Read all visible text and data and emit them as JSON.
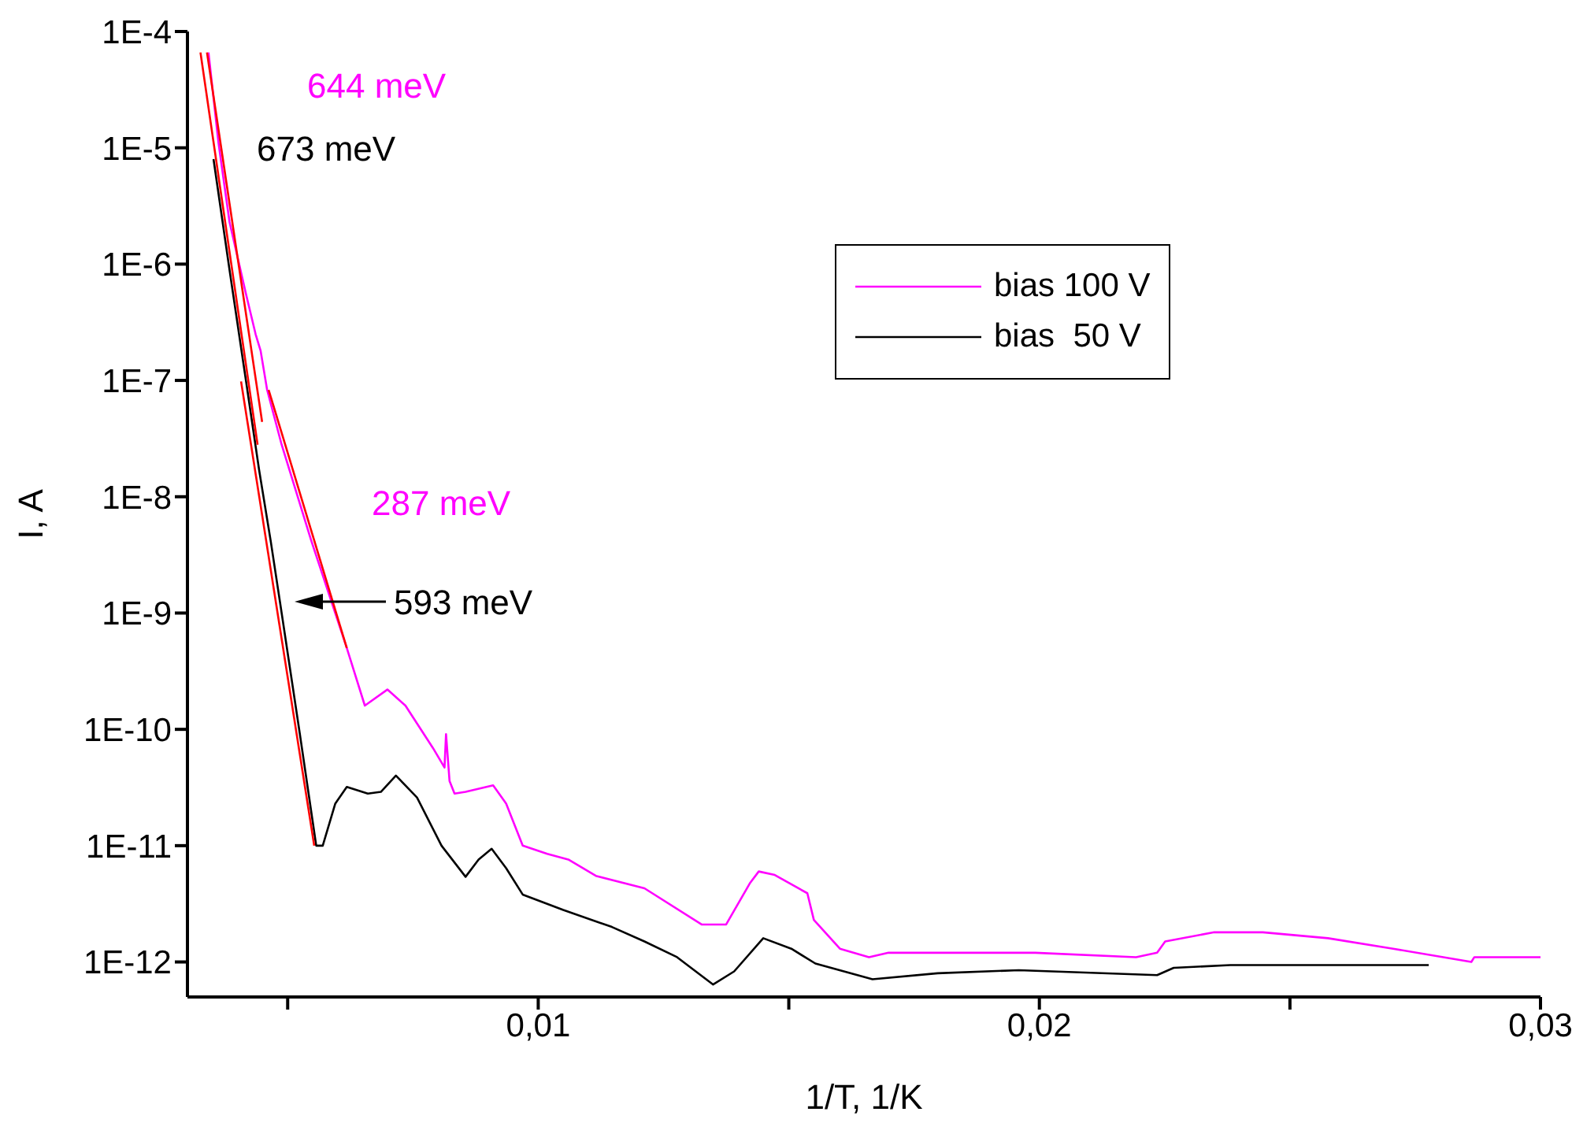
{
  "chart_data": {
    "type": "line",
    "xlabel": "1/T, 1/K",
    "ylabel": "I, A",
    "log": "y",
    "xlim": [
      0.003,
      0.03
    ],
    "ylim": [
      5e-13,
      0.0001
    ],
    "xticks": [
      {
        "value": 0.005,
        "label": null
      },
      {
        "value": 0.01,
        "label": "0,01"
      },
      {
        "value": 0.015,
        "label": null
      },
      {
        "value": 0.02,
        "label": "0,02"
      },
      {
        "value": 0.025,
        "label": null
      },
      {
        "value": 0.03,
        "label": "0,03"
      }
    ],
    "yticks": [
      {
        "value": 1e-12,
        "label": "1E-12"
      },
      {
        "value": 1e-11,
        "label": "1E-11"
      },
      {
        "value": 1e-10,
        "label": "1E-10"
      },
      {
        "value": 1e-09,
        "label": "1E-9"
      },
      {
        "value": 1e-08,
        "label": "1E-8"
      },
      {
        "value": 1e-07,
        "label": "1E-7"
      },
      {
        "value": 1e-06,
        "label": "1E-6"
      },
      {
        "value": 1e-05,
        "label": "1E-5"
      },
      {
        "value": 0.0001,
        "label": "1E-4"
      }
    ],
    "legend": "top right",
    "marker": "none",
    "line_style": "solid",
    "series": [
      {
        "name": "bias 100 V",
        "color": "#ff00ff",
        "x": [
          0.00342,
          0.00362,
          0.00384,
          0.00417,
          0.00436,
          0.00446,
          0.00459,
          0.00488,
          0.00547,
          0.00618,
          0.00654,
          0.00699,
          0.00735,
          0.0079,
          0.00813,
          0.00816,
          0.00823,
          0.00833,
          0.00855,
          0.0091,
          0.00936,
          0.00969,
          0.01018,
          0.0106,
          0.01115,
          0.01212,
          0.01326,
          0.01375,
          0.01423,
          0.0144,
          0.01472,
          0.01537,
          0.0155,
          0.01602,
          0.0166,
          0.01699,
          0.01797,
          0.01992,
          0.02193,
          0.02235,
          0.02251,
          0.02349,
          0.02446,
          0.02576,
          0.02706,
          0.02862,
          0.02868,
          0.03
        ],
        "values": [
          6.6e-05,
          1.1e-05,
          2.3e-06,
          5.5e-07,
          2.5e-07,
          1.8e-07,
          8.3e-08,
          2.8e-08,
          4.2e-09,
          5e-10,
          1.6e-10,
          2.2e-10,
          1.6e-10,
          6.9e-11,
          4.7e-11,
          9.1e-11,
          3.6e-11,
          2.8e-11,
          2.9e-11,
          3.3e-11,
          2.3e-11,
          1e-11,
          8.5e-12,
          7.6e-12,
          5.5e-12,
          4.3e-12,
          2.1e-12,
          2.1e-12,
          4.8e-12,
          6e-12,
          5.6e-12,
          3.9e-12,
          2.3e-12,
          1.3e-12,
          1.1e-12,
          1.2e-12,
          1.2e-12,
          1.2e-12,
          1.1e-12,
          1.2e-12,
          1.5e-12,
          1.8e-12,
          1.8e-12,
          1.6e-12,
          1.3e-12,
          1e-12,
          1.1e-12,
          1.1e-12
        ]
      },
      {
        "name": "bias  50 V",
        "color": "#000000",
        "x": [
          0.00352,
          0.00384,
          0.00417,
          0.00443,
          0.00466,
          0.00488,
          0.00524,
          0.00557,
          0.0057,
          0.00595,
          0.00618,
          0.0066,
          0.00686,
          0.00716,
          0.00758,
          0.00807,
          0.00855,
          0.00881,
          0.00907,
          0.00936,
          0.00969,
          0.0105,
          0.01147,
          0.01212,
          0.01277,
          0.01349,
          0.01391,
          0.01449,
          0.01505,
          0.01553,
          0.01667,
          0.01797,
          0.01959,
          0.02235,
          0.02268,
          0.02381,
          0.02771,
          0.02777
        ],
        "values": [
          8e-06,
          8.9e-07,
          9.8e-08,
          1.7e-08,
          4.2e-09,
          1e-09,
          9.3e-11,
          1e-11,
          1e-11,
          2.3e-11,
          3.2e-11,
          2.8e-11,
          2.9e-11,
          4e-11,
          2.6e-11,
          1e-11,
          5.4e-12,
          7.6e-12,
          9.4e-12,
          6.4e-12,
          3.8e-12,
          2.8e-12,
          2e-12,
          1.5e-12,
          1.1e-12,
          6.4e-13,
          8.3e-13,
          1.6e-12,
          1.3e-12,
          9.7e-13,
          7.1e-13,
          8e-13,
          8.5e-13,
          7.7e-13,
          8.9e-13,
          9.4e-13,
          9.4e-13,
          9.4e-13
        ]
      },
      {
        "color": "#ff0000",
        "x": [
          0.00326,
          0.0044
        ],
        "values": [
          6.6e-05,
          2.8e-08
        ]
      },
      {
        "color": "#ff0000",
        "x": [
          0.00339,
          0.00449
        ],
        "values": [
          6.6e-05,
          4.4e-08
        ]
      },
      {
        "color": "#ff0000",
        "x": [
          0.00407,
          0.00553
        ],
        "values": [
          9.8e-08,
          1e-11
        ]
      },
      {
        "color": "#ff0000",
        "x": [
          0.00462,
          0.00618
        ],
        "values": [
          8.3e-08,
          5e-10
        ]
      }
    ],
    "annotations": [
      "644 meV",
      "673 meV",
      "287 meV",
      "593 meV"
    ]
  }
}
